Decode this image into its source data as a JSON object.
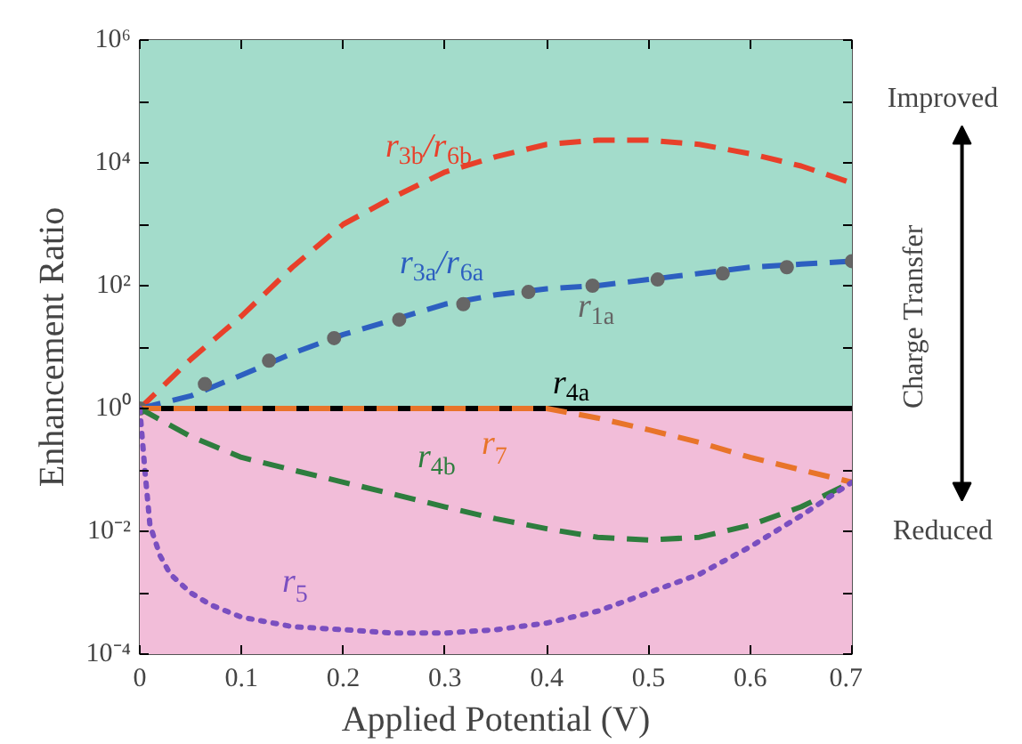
{
  "chart_data": {
    "type": "line",
    "xlabel": "Applied Potential (V)",
    "ylabel": "Enhancement Ratio",
    "x": [
      0,
      0.05,
      0.1,
      0.15,
      0.2,
      0.25,
      0.3,
      0.35,
      0.4,
      0.45,
      0.5,
      0.55,
      0.6,
      0.65,
      0.7
    ],
    "log": "y",
    "xlim": [
      0,
      0.7
    ],
    "xticks": [
      0,
      0.1,
      0.2,
      0.3,
      0.4,
      0.5,
      0.6,
      0.7
    ],
    "ylim": [
      0.0001,
      1000000
    ],
    "yticks": [
      {
        "value": 0.0001,
        "label": "10⁻⁴"
      },
      {
        "value": 0.001,
        "label": null
      },
      {
        "value": 0.01,
        "label": "10⁻²"
      },
      {
        "value": 0.1,
        "label": null
      },
      {
        "value": 1,
        "label": "10⁰"
      },
      {
        "value": 10,
        "label": null
      },
      {
        "value": 100,
        "label": "10²"
      },
      {
        "value": 1000,
        "label": null
      },
      {
        "value": 10000,
        "label": "10⁴"
      },
      {
        "value": 100000,
        "label": null
      },
      {
        "value": 1000000,
        "label": "10⁶"
      }
    ],
    "bands": [
      {
        "axis": "y",
        "from": 1,
        "to": 1000000,
        "label": null,
        "color": "#a3dccb"
      },
      {
        "axis": "y",
        "from": 0.0001,
        "to": 1,
        "label": null,
        "color": "#f2bdd9"
      }
    ],
    "series": [
      {
        "name": "r$_{3b}$/r$_{6b}$",
        "color": "#e8402a",
        "line_style": "dashed",
        "values": [
          1,
          6.3,
          32,
          200,
          1000,
          2800,
          7100,
          12600,
          20000,
          23400,
          23400,
          20000,
          14100,
          8900,
          4700
        ]
      },
      {
        "name": "r$_{3a}$/r$_{6a}$",
        "color": "#2d5fc0",
        "line_style": "dashed",
        "values": [
          1,
          1.6,
          3.5,
          7.9,
          16,
          28,
          50,
          71,
          89,
          100,
          126,
          158,
          200,
          224,
          251
        ]
      },
      {
        "name": "r$_{1a}$",
        "type": "scatter",
        "marker": "circle",
        "color": "#666666",
        "x": [
          0,
          0.064,
          0.127,
          0.191,
          0.255,
          0.318,
          0.382,
          0.445,
          0.509,
          0.573,
          0.636,
          0.7
        ],
        "values": [
          1,
          2.5,
          6,
          14,
          28,
          50,
          79,
          100,
          126,
          158,
          200,
          251
        ]
      },
      {
        "name": "r$_{4a}$",
        "color": "#000000",
        "line_style": "solid",
        "x": [
          0,
          0.7
        ],
        "values": [
          1,
          1
        ]
      },
      {
        "name": "r$_{7}$",
        "color": "#e8742a",
        "line_style": "dashed",
        "values": [
          1,
          1,
          1,
          1,
          1,
          1,
          1,
          1,
          1,
          0.7,
          0.45,
          0.28,
          0.16,
          0.1,
          0.063
        ]
      },
      {
        "name": "r$_{4b}$",
        "color": "#2e7d3e",
        "line_style": "dashed",
        "values": [
          1,
          0.35,
          0.16,
          0.1,
          0.063,
          0.04,
          0.025,
          0.016,
          0.011,
          0.008,
          0.0072,
          0.008,
          0.0126,
          0.025,
          0.063
        ]
      },
      {
        "name": "r$_{5}$",
        "color": "#7a4fc0",
        "line_style": "dotted",
        "x": [
          0,
          0.005,
          0.01,
          0.02,
          0.03,
          0.05,
          0.07,
          0.1,
          0.15,
          0.2,
          0.25,
          0.3,
          0.35,
          0.4,
          0.45,
          0.5,
          0.55,
          0.6,
          0.65,
          0.7
        ],
        "values": [
          1,
          0.1,
          0.0126,
          0.004,
          0.002,
          0.001,
          0.00063,
          0.0004,
          0.00028,
          0.00025,
          0.00022,
          0.00022,
          0.00025,
          0.00032,
          0.0005,
          0.001,
          0.002,
          0.0056,
          0.018,
          0.063
        ]
      }
    ],
    "annotations": [
      "Improved",
      "Charge Transfer",
      "Reduced"
    ]
  }
}
